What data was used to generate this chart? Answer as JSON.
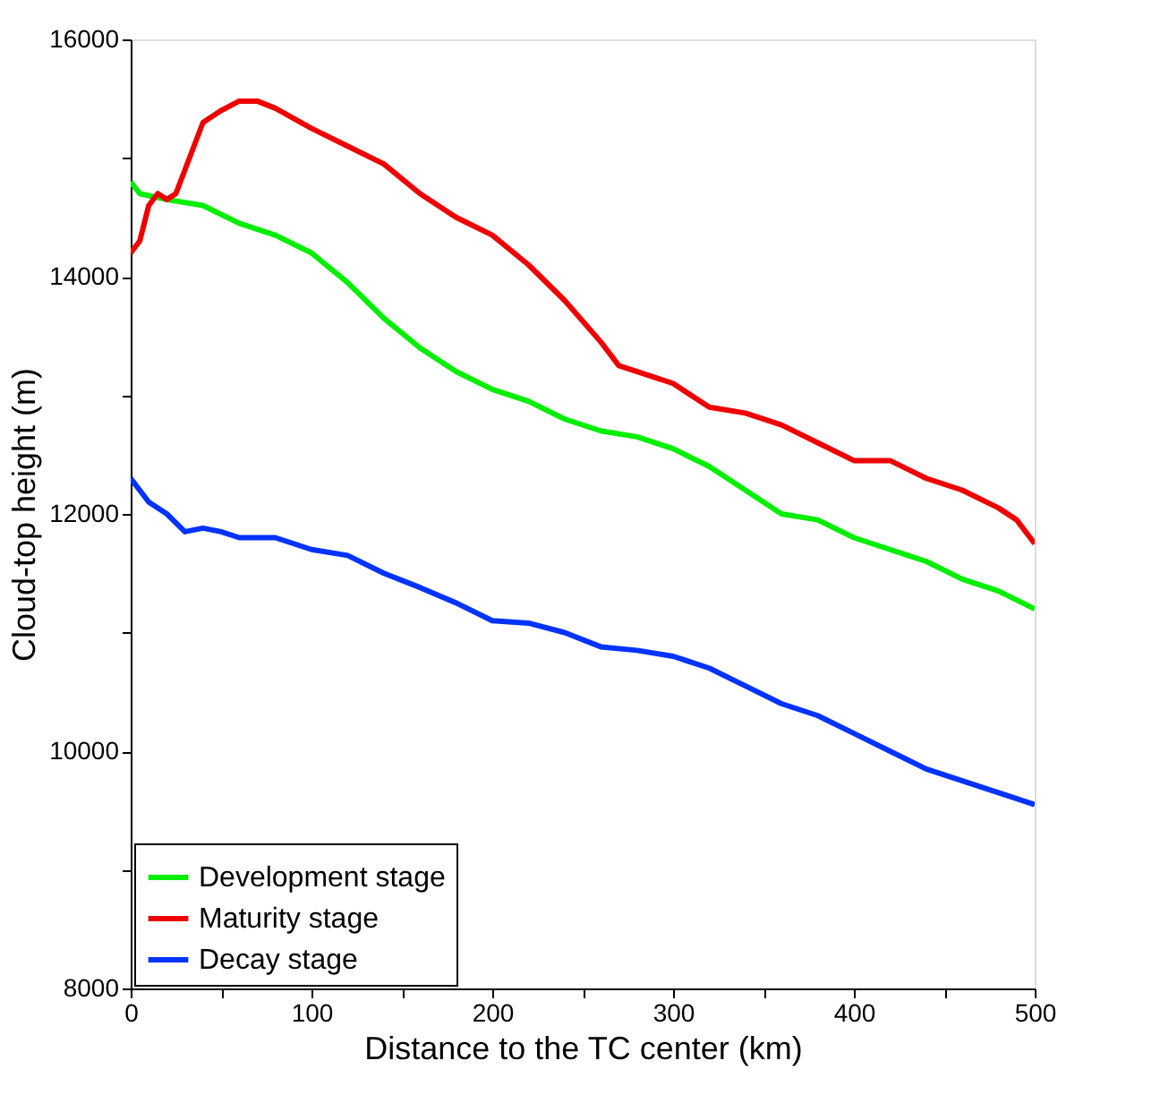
{
  "chart_data": {
    "type": "line",
    "xlabel": "Distance to the TC center (km)",
    "ylabel": "Cloud-top height (m)",
    "xlim": [
      0,
      500
    ],
    "xticks": [
      0,
      {
        "value": 50,
        "label": null
      },
      100,
      {
        "value": 150,
        "label": null
      },
      200,
      {
        "value": 250,
        "label": null
      },
      300,
      {
        "value": 350,
        "label": null
      },
      400,
      {
        "value": 450,
        "label": null
      },
      500
    ],
    "ylim": [
      8000,
      16000
    ],
    "yticks": [
      8000,
      {
        "value": 9000,
        "label": null
      },
      10000,
      {
        "value": 11000,
        "label": null
      },
      12000,
      {
        "value": 13000,
        "label": null
      },
      14000,
      {
        "value": 15000,
        "label": null
      },
      16000
    ],
    "grid": false,
    "legend": "bottom left",
    "marker": "none",
    "line_style": "solid",
    "series": [
      {
        "name": "Development stage",
        "color": "#00ee00",
        "x": [
          0,
          5,
          20,
          40,
          60,
          80,
          100,
          120,
          140,
          160,
          180,
          200,
          220,
          240,
          260,
          280,
          300,
          320,
          340,
          360,
          380,
          400,
          420,
          440,
          460,
          480,
          500
        ],
        "values": [
          14800,
          14700,
          14650,
          14600,
          14450,
          14350,
          14200,
          13950,
          13650,
          13400,
          13200,
          13050,
          12950,
          12800,
          12700,
          12650,
          12550,
          12400,
          12200,
          12000,
          11950,
          11800,
          11700,
          11600,
          11450,
          11350,
          11200
        ]
      },
      {
        "name": "Maturity stage",
        "color": "#ee0000",
        "x": [
          0,
          5,
          10,
          15,
          20,
          25,
          30,
          40,
          50,
          60,
          70,
          80,
          100,
          120,
          140,
          160,
          180,
          200,
          220,
          240,
          260,
          270,
          290,
          300,
          320,
          340,
          360,
          380,
          400,
          420,
          440,
          460,
          480,
          490,
          500
        ],
        "values": [
          14200,
          14300,
          14600,
          14700,
          14650,
          14700,
          14900,
          15300,
          15400,
          15480,
          15480,
          15420,
          15250,
          15100,
          14950,
          14700,
          14500,
          14350,
          14100,
          13800,
          13450,
          13250,
          13150,
          13100,
          12900,
          12850,
          12750,
          12600,
          12450,
          12450,
          12300,
          12200,
          12050,
          11950,
          11750
        ]
      },
      {
        "name": "Decay stage",
        "color": "#0033ff",
        "x": [
          0,
          5,
          10,
          20,
          30,
          40,
          50,
          60,
          80,
          100,
          120,
          140,
          160,
          180,
          200,
          220,
          240,
          260,
          280,
          300,
          320,
          340,
          360,
          380,
          400,
          420,
          440,
          460,
          480,
          500
        ],
        "values": [
          12300,
          12200,
          12100,
          12000,
          11850,
          11880,
          11850,
          11800,
          11800,
          11700,
          11650,
          11500,
          11380,
          11250,
          11100,
          11080,
          11000,
          10880,
          10850,
          10800,
          10700,
          10550,
          10400,
          10300,
          10150,
          10000,
          9850,
          9750,
          9650,
          9550
        ]
      }
    ]
  }
}
